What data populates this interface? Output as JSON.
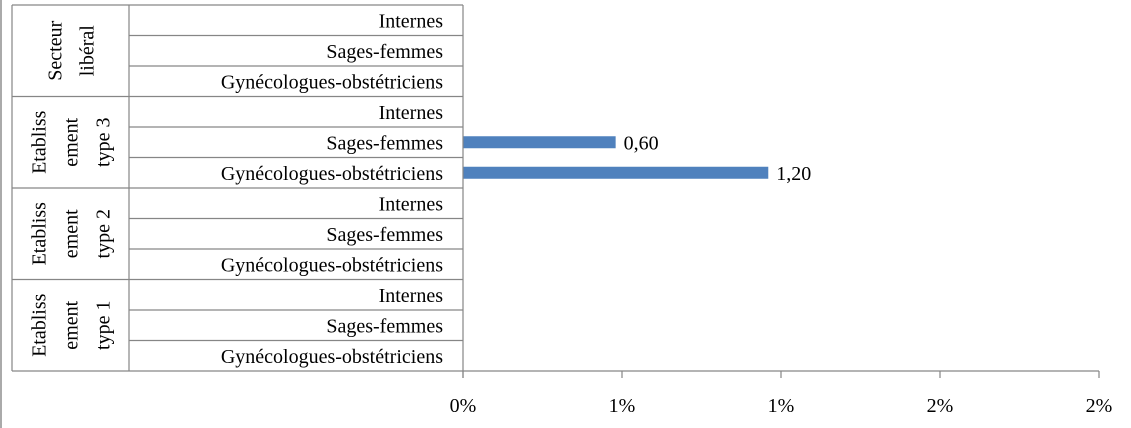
{
  "chart_data": {
    "type": "bar",
    "orientation": "horizontal",
    "groups": [
      {
        "label": [
          "Secteur",
          "libéral"
        ],
        "categories": [
          "Internes",
          "Sages-femmes",
          "Gynécologues-obstétriciens"
        ],
        "values": [
          null,
          null,
          null
        ]
      },
      {
        "label": [
          "Etabliss",
          "ement",
          "type 3"
        ],
        "categories": [
          "Internes",
          "Sages-femmes",
          "Gynécologues-obstétriciens"
        ],
        "values": [
          null,
          0.6,
          1.2
        ]
      },
      {
        "label": [
          "Etabliss",
          "ement",
          "type 2"
        ],
        "categories": [
          "Internes",
          "Sages-femmes",
          "Gynécologues-obstétriciens"
        ],
        "values": [
          null,
          null,
          null
        ]
      },
      {
        "label": [
          "Etabliss",
          "ement",
          "type 1"
        ],
        "categories": [
          "Internes",
          "Sages-femmes",
          "Gynécologues-obstétriciens"
        ],
        "values": [
          null,
          null,
          null
        ]
      }
    ],
    "data_labels": [
      "0,60",
      "1,20"
    ],
    "x_tick_labels": [
      "0%",
      "1%",
      "1%",
      "2%",
      "2%"
    ],
    "xlim": [
      0,
      2.5
    ],
    "bar_color": "#4f81bd",
    "axis_color": "#868686",
    "grid": false,
    "legend": "none"
  }
}
